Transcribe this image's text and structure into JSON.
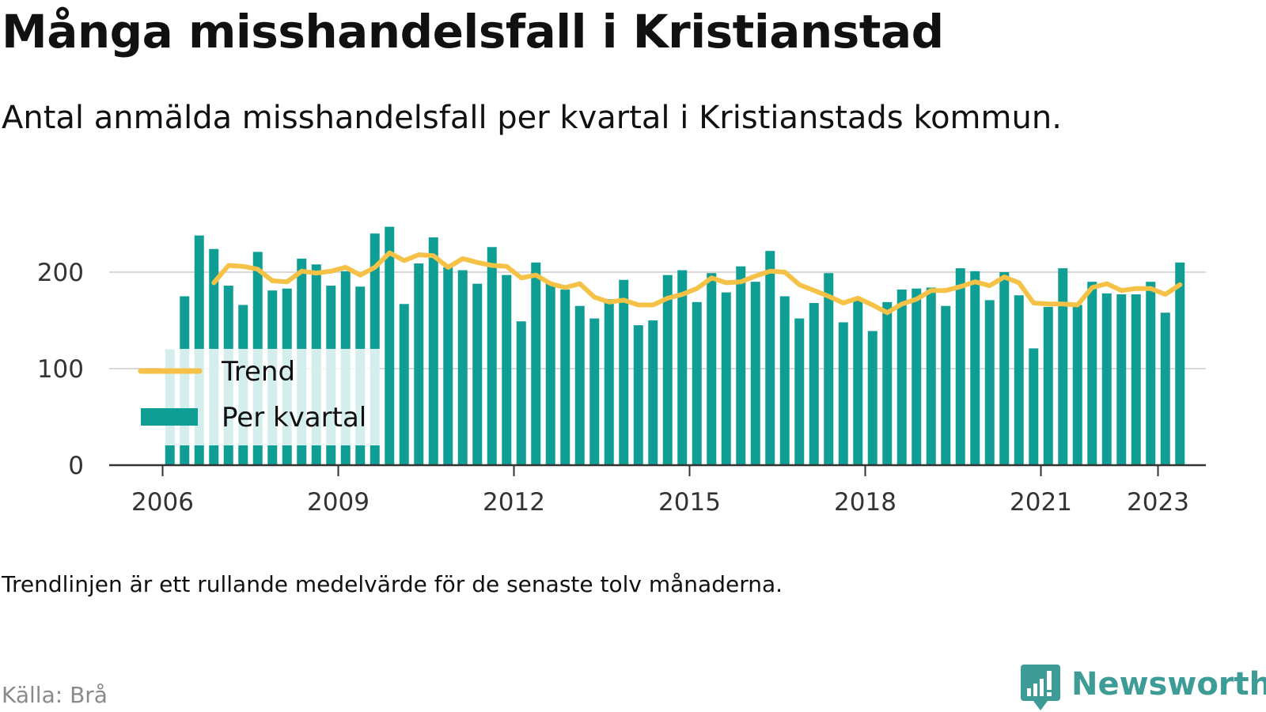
{
  "header": {
    "title": "Många misshandelsfall i Kristianstad",
    "subtitle": "Antal anmälda misshandelsfall per kvartal i Kristianstads kommun."
  },
  "footer": {
    "note": "Trendlinjen är ett rullande medelvärde för de senaste tolv månaderna.",
    "source": "Källa: Brå",
    "brand": "Newsworthy"
  },
  "colors": {
    "bar": "#0e9e94",
    "trend": "#f5c247",
    "axis": "#333333",
    "grid": "#d9d9d9",
    "brand": "#3d9c95",
    "source": "#8a8a8a"
  },
  "icons": {
    "brand_logo": "newsworthy-chart-bubble-icon"
  },
  "chart_data": {
    "type": "bar",
    "ylim": [
      0,
      250
    ],
    "yticks": [
      0,
      100,
      200
    ],
    "xticks": [
      "2006",
      "2009",
      "2012",
      "2015",
      "2018",
      "2021",
      "2023"
    ],
    "grid": true,
    "legend_position": "bottom-left",
    "categories": [
      "2006 Q1",
      "2006 Q2",
      "2006 Q3",
      "2006 Q4",
      "2007 Q1",
      "2007 Q2",
      "2007 Q3",
      "2007 Q4",
      "2008 Q1",
      "2008 Q2",
      "2008 Q3",
      "2008 Q4",
      "2009 Q1",
      "2009 Q2",
      "2009 Q3",
      "2009 Q4",
      "2010 Q1",
      "2010 Q2",
      "2010 Q3",
      "2010 Q4",
      "2011 Q1",
      "2011 Q2",
      "2011 Q3",
      "2011 Q4",
      "2012 Q1",
      "2012 Q2",
      "2012 Q3",
      "2012 Q4",
      "2013 Q1",
      "2013 Q2",
      "2013 Q3",
      "2013 Q4",
      "2014 Q1",
      "2014 Q2",
      "2014 Q3",
      "2014 Q4",
      "2015 Q1",
      "2015 Q2",
      "2015 Q3",
      "2015 Q4",
      "2016 Q1",
      "2016 Q2",
      "2016 Q3",
      "2016 Q4",
      "2017 Q1",
      "2017 Q2",
      "2017 Q3",
      "2017 Q4",
      "2018 Q1",
      "2018 Q2",
      "2018 Q3",
      "2018 Q4",
      "2019 Q1",
      "2019 Q2",
      "2019 Q3",
      "2019 Q4",
      "2020 Q1",
      "2020 Q2",
      "2020 Q3",
      "2020 Q4",
      "2021 Q1",
      "2021 Q2",
      "2021 Q3",
      "2021 Q4",
      "2022 Q1",
      "2022 Q2",
      "2022 Q3",
      "2022 Q4",
      "2023 Q1",
      "2023 Q2"
    ],
    "series": [
      {
        "name": "Per kvartal",
        "kind": "bar",
        "values": [
          120,
          175,
          238,
          224,
          186,
          166,
          221,
          181,
          183,
          214,
          208,
          186,
          201,
          185,
          240,
          247,
          167,
          209,
          236,
          205,
          202,
          188,
          226,
          197,
          149,
          210,
          189,
          182,
          165,
          152,
          172,
          192,
          145,
          150,
          197,
          202,
          169,
          199,
          179,
          206,
          190,
          222,
          175,
          152,
          168,
          199,
          148,
          172,
          139,
          169,
          182,
          183,
          184,
          165,
          204,
          201,
          171,
          200,
          176,
          121,
          164,
          204,
          166,
          190,
          178,
          177,
          177,
          190,
          158,
          210
        ]
      },
      {
        "name": "Trend",
        "kind": "line",
        "values": [
          null,
          null,
          null,
          189,
          207,
          206,
          203,
          191,
          190,
          201,
          199,
          201,
          205,
          197,
          205,
          220,
          212,
          218,
          217,
          205,
          214,
          210,
          207,
          206,
          194,
          197,
          188,
          184,
          188,
          174,
          169,
          171,
          166,
          166,
          173,
          177,
          183,
          194,
          189,
          190,
          196,
          201,
          200,
          187,
          181,
          175,
          168,
          173,
          166,
          158,
          167,
          172,
          181,
          181,
          185,
          190,
          186,
          195,
          189,
          168,
          167,
          167,
          166,
          184,
          188,
          181,
          183,
          183,
          177,
          187
        ]
      }
    ]
  }
}
